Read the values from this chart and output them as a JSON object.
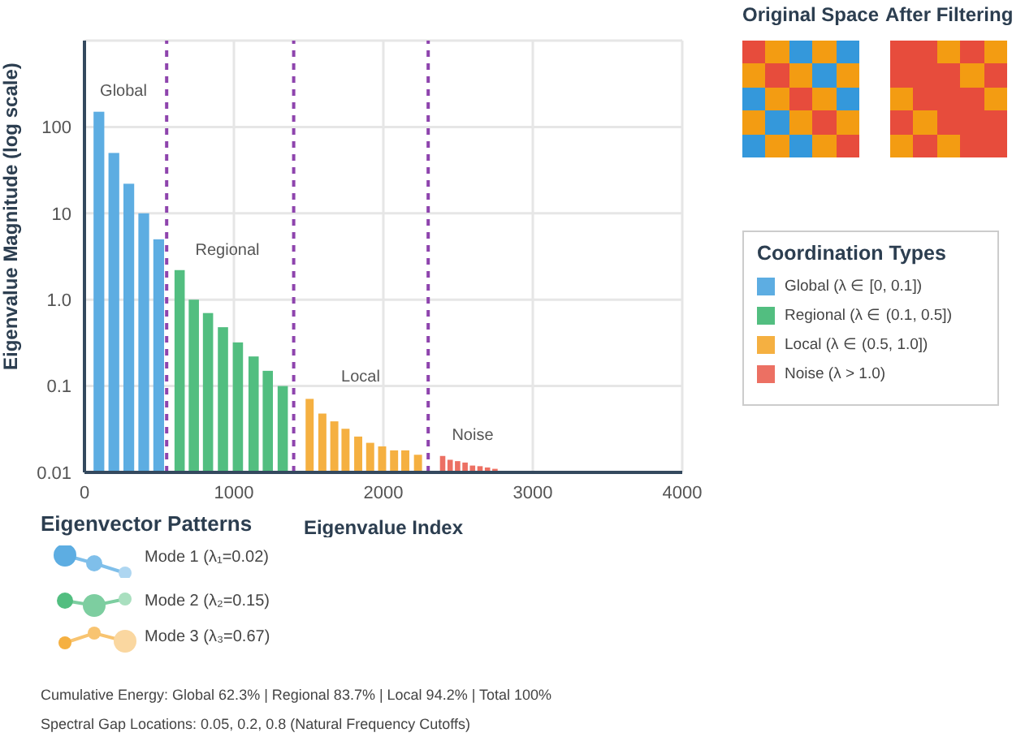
{
  "chart_data": {
    "type": "bar",
    "xlabel": "Eigenvalue Index",
    "ylabel": "Eigenvalue Magnitude (log scale)",
    "legend_title": "Coordination Types",
    "series": [
      {
        "name": "Global (λ ∈ [0, 0.1])",
        "color": "#5dade2",
        "x": [
          100,
          200,
          300,
          400,
          500
        ],
        "values": [
          150,
          50,
          22,
          10,
          5
        ]
      },
      {
        "name": "Regional (λ ∈ (0.1, 0.5])",
        "color": "#52be80",
        "x": [
          640,
          735,
          830,
          930,
          1030,
          1135,
          1230,
          1330
        ],
        "values": [
          2.2,
          1.0,
          0.7,
          0.48,
          0.32,
          0.22,
          0.15,
          0.1
        ]
      },
      {
        "name": "Local (λ ∈ (0.5, 1.0])",
        "color": "#f5b041",
        "x": [
          1510,
          1595,
          1675,
          1750,
          1835,
          1915,
          1995,
          2075,
          2150,
          2235
        ],
        "values": [
          0.071,
          0.048,
          0.039,
          0.032,
          0.026,
          0.022,
          0.02,
          0.018,
          0.018,
          0.016
        ]
      },
      {
        "name": "Noise (λ > 1.0)",
        "color": "#ec7063",
        "x": [
          2400,
          2450,
          2500,
          2550,
          2600,
          2650,
          2700,
          2750
        ],
        "values": [
          0.0155,
          0.014,
          0.0135,
          0.013,
          0.012,
          0.0118,
          0.0114,
          0.011
        ]
      }
    ],
    "xlim": [
      0,
      4000
    ],
    "xticks": [
      0,
      1000,
      2000,
      3000,
      4000
    ],
    "ylim": [
      0.01,
      1000
    ],
    "yticks": [
      0.01,
      0.1,
      {
        "value": 1,
        "label": "1.0"
      },
      10,
      100
    ],
    "log": "y",
    "grid": true,
    "legend": "right",
    "ref_lines": [
      {
        "axis": "x",
        "value": 550,
        "color": "#8e44ad",
        "line_style": "dashed"
      },
      {
        "axis": "x",
        "value": 1400,
        "color": "#8e44ad",
        "line_style": "dashed"
      },
      {
        "axis": "x",
        "value": 2300,
        "color": "#8e44ad",
        "line_style": "dashed"
      }
    ],
    "annotations": [
      "Global",
      "Regional",
      "Local",
      "Noise",
      "Original Space",
      "After Filtering",
      "Eigenvector Patterns",
      "Mode 1 (λ₁=0.02)",
      "Mode 2 (λ₂=0.15)",
      "Mode 3 (λ₃=0.67)",
      "Cumulative Energy: Global 62.3% | Regional 83.7% | Local 94.2% | Total 100%",
      "Spectral Gap Locations: 0.05, 0.2, 0.8 (Natural Frequency Cutoffs)"
    ]
  }
}
